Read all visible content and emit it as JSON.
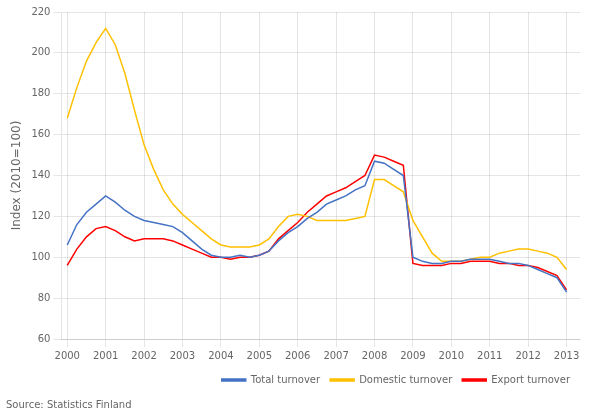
{
  "chart_data": {
    "type": "line",
    "ylabel": "Index (2010=100)",
    "annotations": [
      "Source: Statistics Finland"
    ],
    "x": [
      2000,
      2000.25,
      2000.5,
      2000.75,
      2001,
      2001.25,
      2001.5,
      2001.75,
      2002,
      2002.25,
      2002.5,
      2002.75,
      2003,
      2003.25,
      2003.5,
      2003.75,
      2004,
      2004.25,
      2004.5,
      2004.75,
      2005,
      2005.25,
      2005.5,
      2005.75,
      2006,
      2006.25,
      2006.5,
      2006.75,
      2007,
      2007.25,
      2007.5,
      2007.75,
      2008,
      2008.25,
      2008.5,
      2008.75,
      2009,
      2009.25,
      2009.5,
      2009.75,
      2010,
      2010.25,
      2010.5,
      2010.75,
      2011,
      2011.25,
      2011.5,
      2011.75,
      2012,
      2012.25,
      2012.5,
      2012.75,
      2013
    ],
    "series": [
      {
        "name": "Total turnover",
        "color": "#4472c4",
        "values": [
          106,
          116,
          122,
          126,
          130,
          127,
          123,
          120,
          118,
          117,
          116,
          115,
          112,
          108,
          104,
          101,
          100,
          100,
          101,
          100,
          101,
          103,
          108,
          112,
          115,
          119,
          122,
          126,
          128,
          130,
          133,
          135,
          147,
          146,
          143,
          140,
          100,
          98,
          97,
          97,
          98,
          98,
          99,
          99,
          99,
          98,
          97,
          97,
          96,
          94,
          92,
          90,
          83
        ]
      },
      {
        "name": "Domestic turnover",
        "color": "#ffc000",
        "values": [
          168,
          183,
          196,
          205,
          212,
          204,
          190,
          172,
          155,
          143,
          133,
          126,
          121,
          117,
          113,
          109,
          106,
          105,
          105,
          105,
          106,
          109,
          115,
          120,
          121,
          120,
          118,
          118,
          118,
          118,
          119,
          120,
          138,
          138,
          135,
          132,
          118,
          110,
          102,
          98,
          98,
          98,
          99,
          100,
          100,
          102,
          103,
          104,
          104,
          103,
          102,
          100,
          94
        ]
      },
      {
        "name": "Export turnover",
        "color": "#ff0000",
        "values": [
          96,
          104,
          110,
          114,
          115,
          113,
          110,
          108,
          109,
          109,
          109,
          108,
          106,
          104,
          102,
          100,
          100,
          99,
          100,
          100,
          101,
          103,
          109,
          113,
          117,
          122,
          126,
          130,
          132,
          134,
          137,
          140,
          150,
          149,
          147,
          145,
          97,
          96,
          96,
          96,
          97,
          97,
          98,
          98,
          98,
          97,
          97,
          96,
          96,
          95,
          93,
          91,
          84
        ]
      }
    ],
    "xlim": [
      1999.85,
      2013.35
    ],
    "xticks": [
      2000,
      2001,
      2002,
      2003,
      2004,
      2005,
      2006,
      2007,
      2008,
      2009,
      2010,
      2011,
      2012,
      2013
    ],
    "ylim": [
      60,
      220
    ],
    "yticks": [
      60,
      80,
      100,
      120,
      140,
      160,
      180,
      200,
      220
    ],
    "grid": true,
    "legend": "bottom"
  }
}
